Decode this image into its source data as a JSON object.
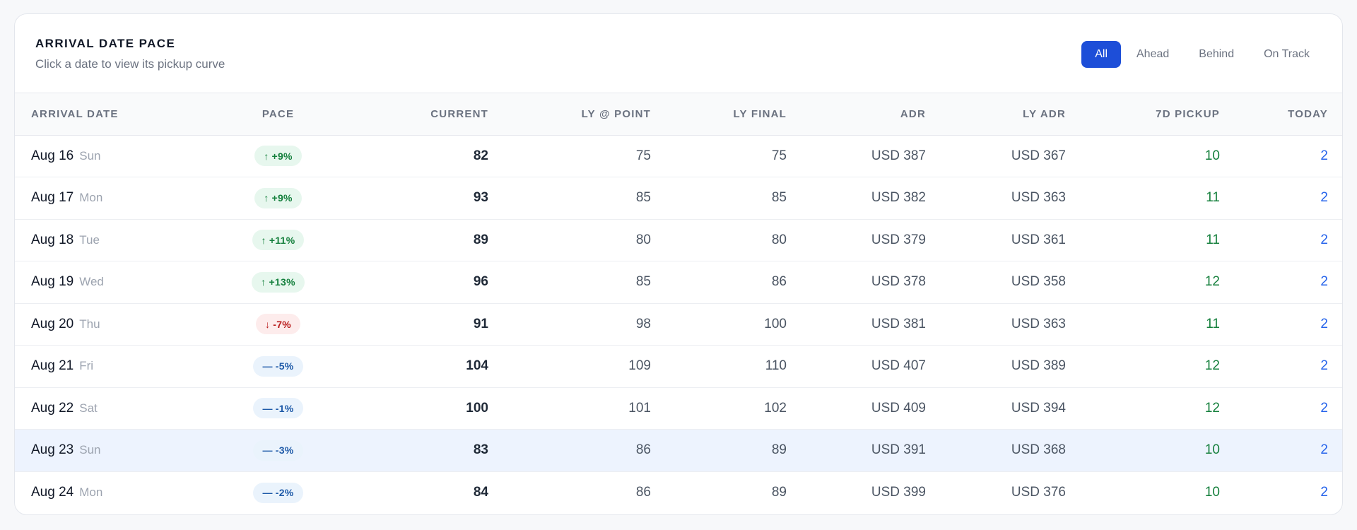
{
  "card": {
    "title": "ARRIVAL DATE PACE",
    "subtitle": "Click a date to view its pickup curve"
  },
  "filters": [
    {
      "label": "All",
      "active": true
    },
    {
      "label": "Ahead",
      "active": false
    },
    {
      "label": "Behind",
      "active": false
    },
    {
      "label": "On Track",
      "active": false
    }
  ],
  "columns": {
    "arrival_date": "ARRIVAL DATE",
    "pace": "PACE",
    "current": "CURRENT",
    "ly_point": "LY @ POINT",
    "ly_final": "LY FINAL",
    "adr": "ADR",
    "ly_adr": "LY ADR",
    "pickup_7d": "7D PICKUP",
    "today": "TODAY"
  },
  "colors": {
    "accent": "#1d4ed8",
    "ahead": "#15803d",
    "behind": "#b91c1c",
    "on_track": "#1e5aa8",
    "selected_row": "#edf3fe"
  },
  "rows": [
    {
      "date": "Aug 16",
      "dow": "Sun",
      "pace_status": "ahead",
      "pace_arrow": "↑",
      "pace": "+9%",
      "current": "82",
      "ly_point": "75",
      "ly_final": "75",
      "adr": "USD 387",
      "ly_adr": "USD 367",
      "pickup_7d": "10",
      "today": "2",
      "selected": false
    },
    {
      "date": "Aug 17",
      "dow": "Mon",
      "pace_status": "ahead",
      "pace_arrow": "↑",
      "pace": "+9%",
      "current": "93",
      "ly_point": "85",
      "ly_final": "85",
      "adr": "USD 382",
      "ly_adr": "USD 363",
      "pickup_7d": "11",
      "today": "2",
      "selected": false
    },
    {
      "date": "Aug 18",
      "dow": "Tue",
      "pace_status": "ahead",
      "pace_arrow": "↑",
      "pace": "+11%",
      "current": "89",
      "ly_point": "80",
      "ly_final": "80",
      "adr": "USD 379",
      "ly_adr": "USD 361",
      "pickup_7d": "11",
      "today": "2",
      "selected": false
    },
    {
      "date": "Aug 19",
      "dow": "Wed",
      "pace_status": "ahead",
      "pace_arrow": "↑",
      "pace": "+13%",
      "current": "96",
      "ly_point": "85",
      "ly_final": "86",
      "adr": "USD 378",
      "ly_adr": "USD 358",
      "pickup_7d": "12",
      "today": "2",
      "selected": false
    },
    {
      "date": "Aug 20",
      "dow": "Thu",
      "pace_status": "behind",
      "pace_arrow": "↓",
      "pace": "-7%",
      "current": "91",
      "ly_point": "98",
      "ly_final": "100",
      "adr": "USD 381",
      "ly_adr": "USD 363",
      "pickup_7d": "11",
      "today": "2",
      "selected": false
    },
    {
      "date": "Aug 21",
      "dow": "Fri",
      "pace_status": "ontrack",
      "pace_arrow": "—",
      "pace": "-5%",
      "current": "104",
      "ly_point": "109",
      "ly_final": "110",
      "adr": "USD 407",
      "ly_adr": "USD 389",
      "pickup_7d": "12",
      "today": "2",
      "selected": false
    },
    {
      "date": "Aug 22",
      "dow": "Sat",
      "pace_status": "ontrack",
      "pace_arrow": "—",
      "pace": "-1%",
      "current": "100",
      "ly_point": "101",
      "ly_final": "102",
      "adr": "USD 409",
      "ly_adr": "USD 394",
      "pickup_7d": "12",
      "today": "2",
      "selected": false
    },
    {
      "date": "Aug 23",
      "dow": "Sun",
      "pace_status": "ontrack",
      "pace_arrow": "—",
      "pace": "-3%",
      "current": "83",
      "ly_point": "86",
      "ly_final": "89",
      "adr": "USD 391",
      "ly_adr": "USD 368",
      "pickup_7d": "10",
      "today": "2",
      "selected": true
    },
    {
      "date": "Aug 24",
      "dow": "Mon",
      "pace_status": "ontrack",
      "pace_arrow": "—",
      "pace": "-2%",
      "current": "84",
      "ly_point": "86",
      "ly_final": "89",
      "adr": "USD 399",
      "ly_adr": "USD 376",
      "pickup_7d": "10",
      "today": "2",
      "selected": false
    }
  ]
}
